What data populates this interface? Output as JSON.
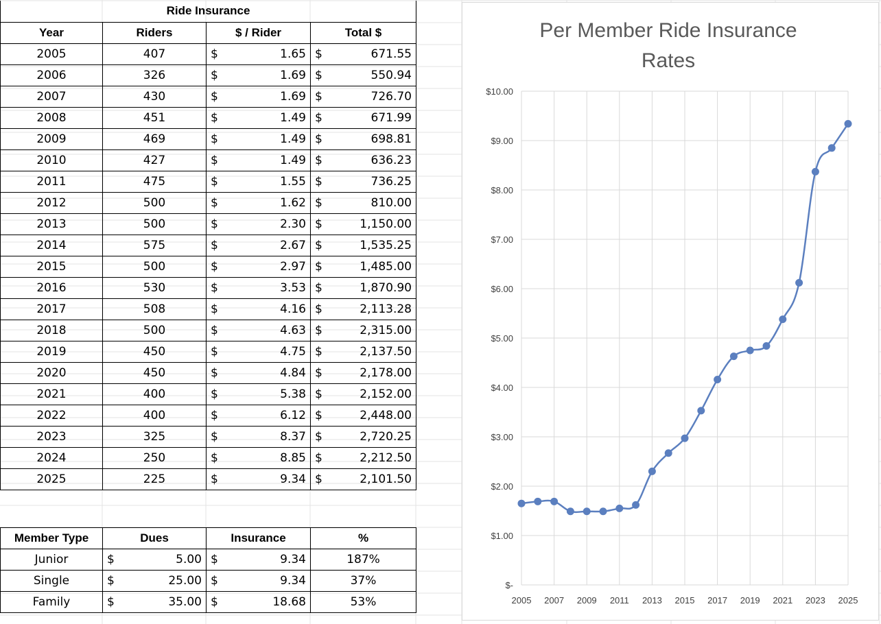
{
  "ride_insurance": {
    "title": "Ride Insurance",
    "columns": [
      "Year",
      "Riders",
      "$ / Rider",
      "Total $"
    ],
    "currency_symbol": "$",
    "rows": [
      {
        "year": "2005",
        "riders": "407",
        "per_rider": "1.65",
        "total": "671.55"
      },
      {
        "year": "2006",
        "riders": "326",
        "per_rider": "1.69",
        "total": "550.94"
      },
      {
        "year": "2007",
        "riders": "430",
        "per_rider": "1.69",
        "total": "726.70"
      },
      {
        "year": "2008",
        "riders": "451",
        "per_rider": "1.49",
        "total": "671.99"
      },
      {
        "year": "2009",
        "riders": "469",
        "per_rider": "1.49",
        "total": "698.81"
      },
      {
        "year": "2010",
        "riders": "427",
        "per_rider": "1.49",
        "total": "636.23"
      },
      {
        "year": "2011",
        "riders": "475",
        "per_rider": "1.55",
        "total": "736.25"
      },
      {
        "year": "2012",
        "riders": "500",
        "per_rider": "1.62",
        "total": "810.00"
      },
      {
        "year": "2013",
        "riders": "500",
        "per_rider": "2.30",
        "total": "1,150.00"
      },
      {
        "year": "2014",
        "riders": "575",
        "per_rider": "2.67",
        "total": "1,535.25"
      },
      {
        "year": "2015",
        "riders": "500",
        "per_rider": "2.97",
        "total": "1,485.00"
      },
      {
        "year": "2016",
        "riders": "530",
        "per_rider": "3.53",
        "total": "1,870.90"
      },
      {
        "year": "2017",
        "riders": "508",
        "per_rider": "4.16",
        "total": "2,113.28"
      },
      {
        "year": "2018",
        "riders": "500",
        "per_rider": "4.63",
        "total": "2,315.00"
      },
      {
        "year": "2019",
        "riders": "450",
        "per_rider": "4.75",
        "total": "2,137.50"
      },
      {
        "year": "2020",
        "riders": "450",
        "per_rider": "4.84",
        "total": "2,178.00"
      },
      {
        "year": "2021",
        "riders": "400",
        "per_rider": "5.38",
        "total": "2,152.00"
      },
      {
        "year": "2022",
        "riders": "400",
        "per_rider": "6.12",
        "total": "2,448.00"
      },
      {
        "year": "2023",
        "riders": "325",
        "per_rider": "8.37",
        "total": "2,720.25"
      },
      {
        "year": "2024",
        "riders": "250",
        "per_rider": "8.85",
        "total": "2,212.50"
      },
      {
        "year": "2025",
        "riders": "225",
        "per_rider": "9.34",
        "total": "2,101.50"
      }
    ]
  },
  "member_types": {
    "columns": [
      "Member Type",
      "Dues",
      "Insurance",
      "%"
    ],
    "rows": [
      {
        "type": "Junior",
        "dues": "5.00",
        "insurance": "9.34",
        "pct": "187%"
      },
      {
        "type": "Single",
        "dues": "25.00",
        "insurance": "9.34",
        "pct": "37%"
      },
      {
        "type": "Family",
        "dues": "35.00",
        "insurance": "18.68",
        "pct": "53%"
      }
    ]
  },
  "colors": {
    "series": "#5b7fbf",
    "grid": "#d9d9d9",
    "title": "#595959",
    "axis_text": "#404040"
  },
  "chart_data": {
    "type": "line",
    "title": "Per Member Ride Insurance Rates",
    "title_lines": [
      "Per Member Ride Insurance",
      "Rates"
    ],
    "xlabel": "",
    "ylabel": "",
    "x": [
      2005,
      2006,
      2007,
      2008,
      2009,
      2010,
      2011,
      2012,
      2013,
      2014,
      2015,
      2016,
      2017,
      2018,
      2019,
      2020,
      2021,
      2022,
      2023,
      2024,
      2025
    ],
    "series": [
      {
        "values": [
          1.65,
          1.69,
          1.69,
          1.49,
          1.49,
          1.49,
          1.55,
          1.62,
          2.3,
          2.67,
          2.97,
          3.53,
          4.16,
          4.63,
          4.75,
          4.84,
          5.38,
          6.12,
          8.37,
          8.85,
          9.34
        ]
      }
    ],
    "ylim": [
      0,
      10
    ],
    "y_ticks": [
      0,
      1,
      2,
      3,
      4,
      5,
      6,
      7,
      8,
      9,
      10
    ],
    "y_tick_labels": [
      "$-",
      "$1.00",
      "$2.00",
      "$3.00",
      "$4.00",
      "$5.00",
      "$6.00",
      "$7.00",
      "$8.00",
      "$9.00",
      "$10.00"
    ],
    "x_tick_labels": [
      "2005",
      "2007",
      "2009",
      "2011",
      "2013",
      "2015",
      "2017",
      "2019",
      "2021",
      "2023",
      "2025"
    ],
    "x_tick_values": [
      2005,
      2007,
      2009,
      2011,
      2013,
      2015,
      2017,
      2019,
      2021,
      2023,
      2025
    ],
    "grid": true,
    "smooth": true,
    "legend": "none"
  }
}
